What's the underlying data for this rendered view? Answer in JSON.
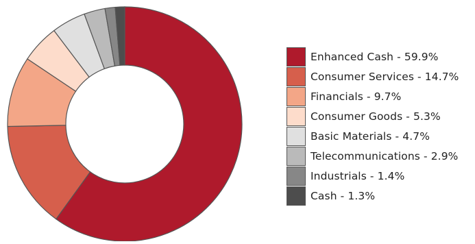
{
  "chart_data": {
    "type": "pie",
    "style": "donut",
    "title": "",
    "slices": [
      {
        "label": "Enhanced Cash - 59.9%",
        "name": "Enhanced Cash",
        "value": 59.9,
        "color": "#AF1A2C"
      },
      {
        "label": "Consumer Services - 14.7%",
        "name": "Consumer Services",
        "value": 14.7,
        "color": "#D65F4C"
      },
      {
        "label": "Financials - 9.7%",
        "name": "Financials",
        "value": 9.7,
        "color": "#F3A687"
      },
      {
        "label": "Consumer Goods - 5.3%",
        "name": "Consumer Goods",
        "value": 5.3,
        "color": "#FDDCCB"
      },
      {
        "label": "Basic Materials - 4.7%",
        "name": "Basic Materials",
        "value": 4.7,
        "color": "#E0E0E0"
      },
      {
        "label": "Telecommunications - 2.9%",
        "name": "Telecommunications",
        "value": 2.9,
        "color": "#BABABA"
      },
      {
        "label": "Industrials - 1.4%",
        "name": "Industrials",
        "value": 1.4,
        "color": "#878787"
      },
      {
        "label": "Cash - 1.3%",
        "name": "Cash",
        "value": 1.3,
        "color": "#4D4D4D"
      }
    ],
    "legend_position": "right",
    "start_angle": "top",
    "direction": "clockwise",
    "border_color": "#555555"
  }
}
